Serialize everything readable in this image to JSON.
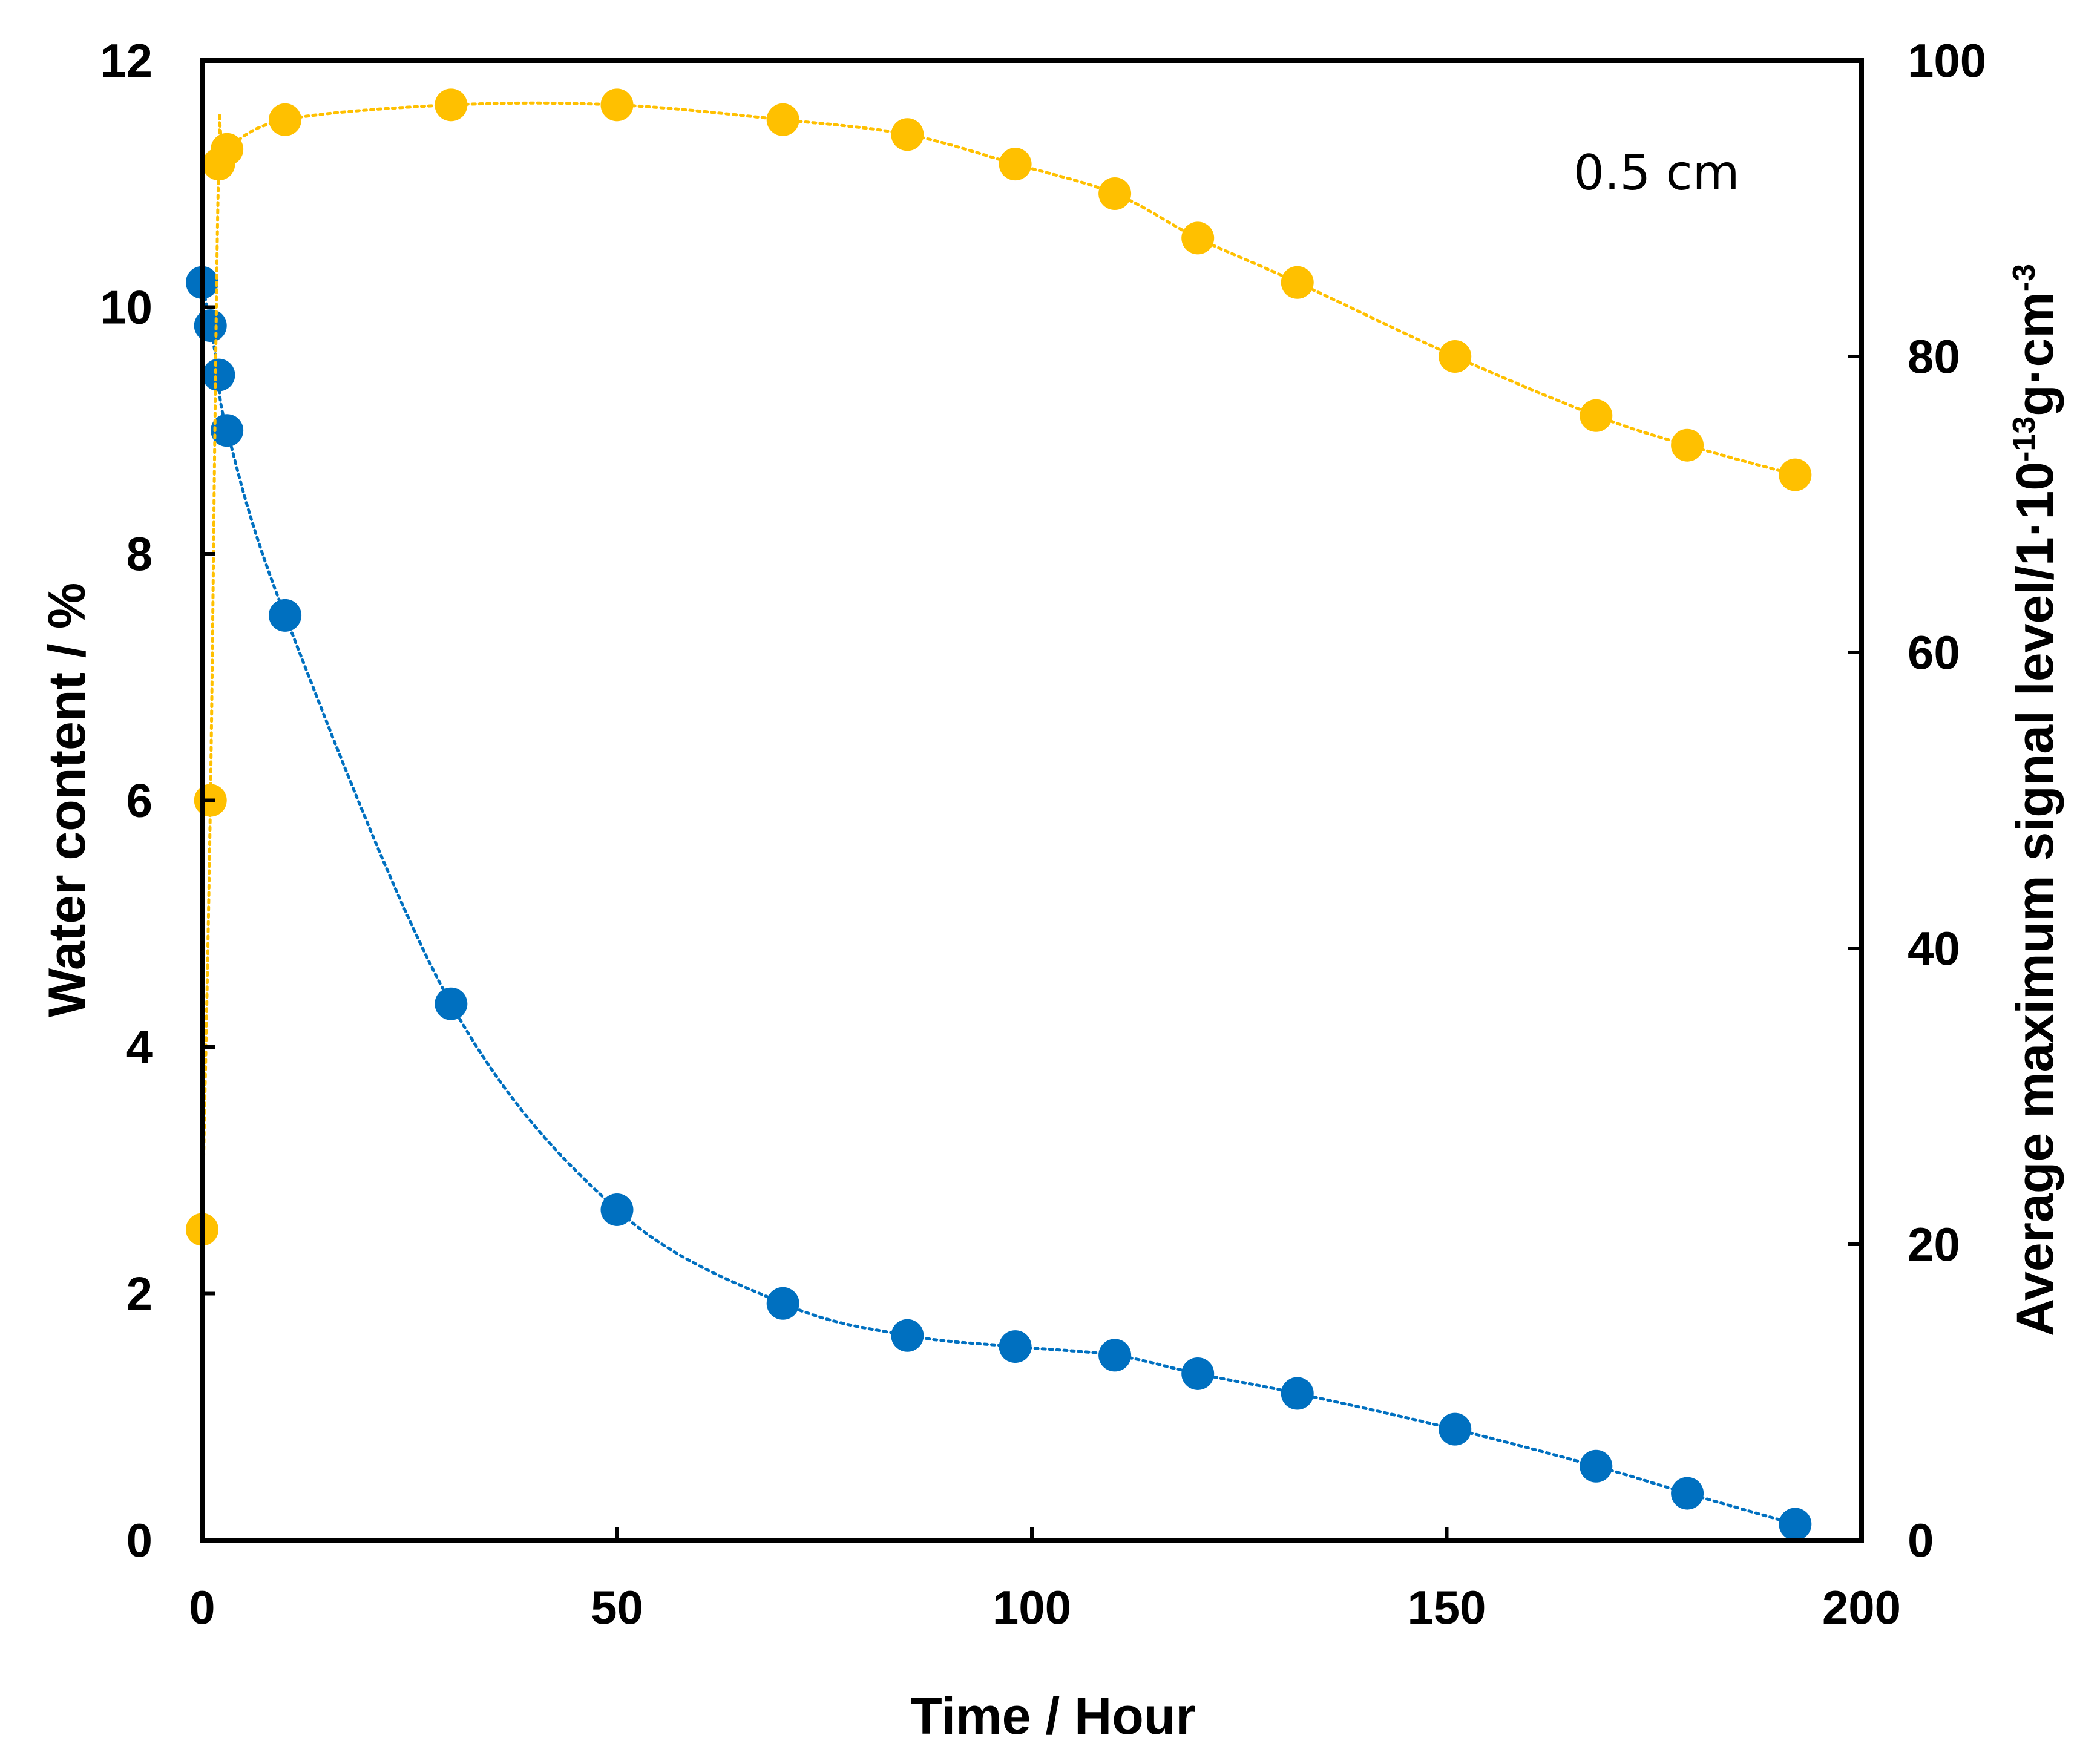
{
  "chart_data": {
    "type": "scatter",
    "annotation": "0.5 cm",
    "xlabel": "Time / Hour",
    "ylabel_left": "Water content / %",
    "ylabel_right": {
      "prefix": "Average maximum signal level/1·10",
      "exp1": "-13",
      "mid": "g·cm",
      "exp2": "-3"
    },
    "xlim": [
      0,
      200
    ],
    "ylim_left": [
      0,
      12
    ],
    "ylim_right": [
      0,
      100
    ],
    "x_ticks": [
      "0",
      "50",
      "100",
      "150",
      "200"
    ],
    "x_tick_values": [
      0,
      50,
      100,
      150,
      200
    ],
    "y_left_ticks": [
      "0",
      "2",
      "4",
      "6",
      "8",
      "10",
      "12"
    ],
    "y_left_tick_values": [
      0,
      2,
      4,
      6,
      8,
      10,
      12
    ],
    "y_right_ticks": [
      "0",
      "20",
      "40",
      "60",
      "80",
      "100"
    ],
    "y_right_tick_values": [
      0,
      20,
      40,
      60,
      80,
      100
    ],
    "grid": false,
    "series": [
      {
        "name": "Water content",
        "axis": "left",
        "color": "#0070C0",
        "line_style": "dotted",
        "x": [
          0,
          1,
          2,
          3,
          10,
          30,
          50,
          70,
          85,
          98,
          110,
          120,
          132,
          151,
          168,
          179,
          192
        ],
        "values": [
          10.2,
          9.85,
          9.45,
          9.0,
          7.5,
          4.35,
          2.68,
          1.92,
          1.66,
          1.57,
          1.5,
          1.35,
          1.19,
          0.9,
          0.6,
          0.38,
          0.13
        ]
      },
      {
        "name": "Average maximum signal level",
        "axis": "right",
        "color": "#FFC000",
        "line_style": "dotted",
        "x": [
          0,
          1,
          2,
          3,
          10,
          30,
          50,
          70,
          85,
          98,
          110,
          120,
          132,
          151,
          168,
          179,
          192
        ],
        "values": [
          21,
          50,
          93,
          94,
          96,
          97,
          97,
          96,
          95,
          93,
          91,
          88,
          85,
          80,
          76,
          74,
          72
        ]
      }
    ]
  },
  "colors": {
    "axis": "#000000",
    "background": "#ffffff"
  }
}
